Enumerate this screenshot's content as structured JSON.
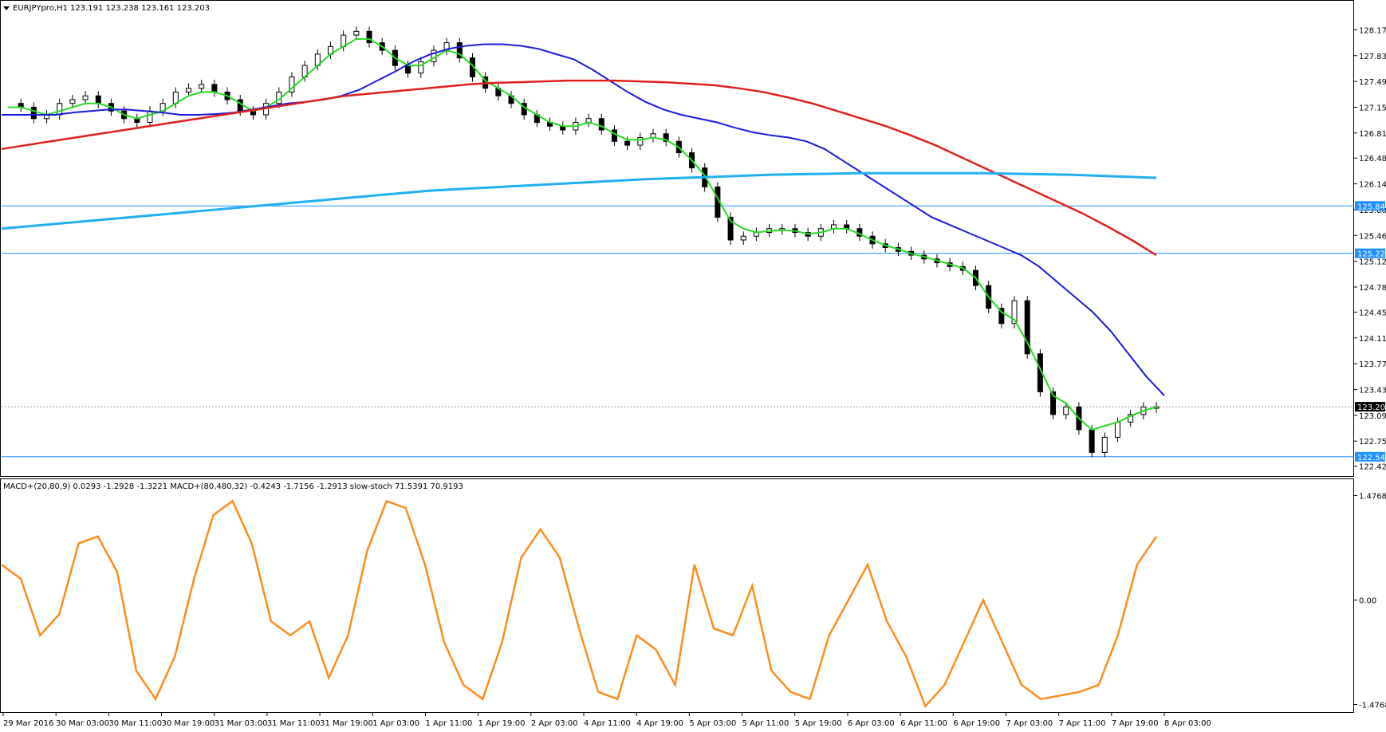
{
  "chart_data": [
    {
      "type": "candlestick",
      "symbol_label": "EURJPYpro,H1",
      "ohlc_label": "123.191 123.238 123.161 123.203",
      "ylim": [
        122.3,
        128.5
      ],
      "y_ticks": [
        "128.170",
        "127.830",
        "127.490",
        "127.150",
        "126.810",
        "126.480",
        "126.140",
        "125.800",
        "125.460",
        "125.120",
        "124.780",
        "124.450",
        "124.110",
        "123.770",
        "123.430",
        "123.090",
        "122.750",
        "122.420"
      ],
      "y_tick_values": [
        128.17,
        127.83,
        127.49,
        127.15,
        126.81,
        126.48,
        126.14,
        125.8,
        125.46,
        125.12,
        124.78,
        124.45,
        124.11,
        123.77,
        123.43,
        123.09,
        122.75,
        122.42
      ],
      "price_tags": [
        {
          "text": "125.849",
          "value": 125.849,
          "color": "#1e90ff"
        },
        {
          "text": "125.225",
          "value": 125.225,
          "color": "#1e90ff"
        },
        {
          "text": "123.203",
          "value": 123.203,
          "color": "#000000"
        },
        {
          "text": "122.544",
          "value": 122.544,
          "color": "#1e90ff"
        }
      ],
      "series": [
        {
          "name": "close",
          "values": [
            127.2,
            127.15,
            127.0,
            127.05,
            127.2,
            127.25,
            127.3,
            127.2,
            127.1,
            127.0,
            126.95,
            127.1,
            127.2,
            127.35,
            127.4,
            127.45,
            127.35,
            127.25,
            127.1,
            127.05,
            127.2,
            127.35,
            127.55,
            127.7,
            127.85,
            127.95,
            128.1,
            128.15,
            128.0,
            127.9,
            127.7,
            127.6,
            127.75,
            127.9,
            128.0,
            127.8,
            127.55,
            127.4,
            127.3,
            127.2,
            127.05,
            126.95,
            126.9,
            126.85,
            126.95,
            127.0,
            126.85,
            126.7,
            126.65,
            126.75,
            126.8,
            126.7,
            126.55,
            126.35,
            126.1,
            125.7,
            125.4,
            125.45,
            125.5,
            125.55,
            125.55,
            125.5,
            125.45,
            125.55,
            125.6,
            125.55,
            125.45,
            125.35,
            125.3,
            125.25,
            125.2,
            125.15,
            125.1,
            125.05,
            125.0,
            124.8,
            124.5,
            124.3,
            124.6,
            123.9,
            123.4,
            123.1,
            123.2,
            122.9,
            122.6,
            122.8,
            123.0,
            123.1,
            123.2,
            123.203
          ]
        },
        {
          "name": "ma_green",
          "values": [
            127.15,
            127.15,
            127.1,
            127.05,
            127.1,
            127.15,
            127.2,
            127.2,
            127.15,
            127.05,
            127.0,
            127.05,
            127.1,
            127.2,
            127.3,
            127.35,
            127.35,
            127.3,
            127.2,
            127.1,
            127.15,
            127.25,
            127.4,
            127.55,
            127.7,
            127.85,
            127.95,
            128.05,
            128.05,
            127.95,
            127.8,
            127.7,
            127.7,
            127.8,
            127.9,
            127.85,
            127.7,
            127.5,
            127.4,
            127.3,
            127.15,
            127.05,
            126.95,
            126.9,
            126.9,
            126.95,
            126.9,
            126.8,
            126.72,
            126.72,
            126.75,
            126.72,
            126.62,
            126.45,
            126.25,
            125.95,
            125.65,
            125.55,
            125.5,
            125.52,
            125.53,
            125.52,
            125.48,
            125.5,
            125.55,
            125.55,
            125.48,
            125.4,
            125.33,
            125.28,
            125.22,
            125.18,
            125.13,
            125.08,
            125.03,
            124.9,
            124.65,
            124.45,
            124.35,
            124.05,
            123.7,
            123.35,
            123.25,
            123.05,
            122.9,
            122.95,
            123.0,
            123.08,
            123.15,
            123.2
          ]
        },
        {
          "name": "ma_blue",
          "values": [
            127.05,
            127.05,
            127.05,
            127.05,
            127.08,
            127.1,
            127.12,
            127.12,
            127.1,
            127.08,
            127.05,
            127.05,
            127.06,
            127.08,
            127.12,
            127.16,
            127.2,
            127.22,
            127.25,
            127.3,
            127.38,
            127.5,
            127.62,
            127.75,
            127.85,
            127.92,
            127.96,
            127.98,
            127.98,
            127.96,
            127.92,
            127.85,
            127.78,
            127.65,
            127.5,
            127.35,
            127.22,
            127.12,
            127.05,
            127.0,
            126.95,
            126.88,
            126.82,
            126.78,
            126.75,
            126.7,
            126.6,
            126.45,
            126.3,
            126.15,
            126.0,
            125.85,
            125.7,
            125.6,
            125.5,
            125.4,
            125.3,
            125.2,
            125.05,
            124.85,
            124.65,
            124.45,
            124.2,
            123.9,
            123.6,
            123.35
          ]
        },
        {
          "name": "ma_red",
          "values": [
            126.6,
            126.65,
            126.7,
            126.75,
            126.8,
            126.85,
            126.9,
            126.95,
            127.0,
            127.05,
            127.1,
            127.15,
            127.2,
            127.25,
            127.3,
            127.33,
            127.36,
            127.39,
            127.42,
            127.45,
            127.47,
            127.48,
            127.49,
            127.5,
            127.5,
            127.5,
            127.49,
            127.48,
            127.46,
            127.44,
            127.4,
            127.35,
            127.28,
            127.2,
            127.1,
            127.0,
            126.9,
            126.78,
            126.65,
            126.5,
            126.35,
            126.2,
            126.05,
            125.9,
            125.75,
            125.58,
            125.4,
            125.2
          ]
        },
        {
          "name": "ma_cyan",
          "values": [
            125.55,
            125.6,
            125.65,
            125.7,
            125.75,
            125.8,
            125.85,
            125.9,
            125.95,
            126.0,
            126.05,
            126.08,
            126.11,
            126.14,
            126.17,
            126.2,
            126.22,
            126.24,
            126.26,
            126.27,
            126.28,
            126.28,
            126.28,
            126.28,
            126.27,
            126.26,
            126.24,
            126.22
          ]
        }
      ],
      "x_ticks": [
        "29 Mar 2016",
        "30 Mar 03:00",
        "30 Mar 11:00",
        "30 Mar 19:00",
        "31 Mar 03:00",
        "31 Mar 11:00",
        "31 Mar 19:00",
        "1 Apr 03:00",
        "1 Apr 11:00",
        "1 Apr 19:00",
        "2 Apr 03:00",
        "4 Apr 11:00",
        "4 Apr 19:00",
        "5 Apr 03:00",
        "5 Apr 11:00",
        "5 Apr 19:00",
        "6 Apr 03:00",
        "6 Apr 11:00",
        "6 Apr 19:00",
        "7 Apr 03:00",
        "7 Apr 11:00",
        "7 Apr 19:00",
        "8 Apr 03:00"
      ]
    },
    {
      "type": "line",
      "label": "MACD+(20,80,9) 0.0293 -1.2928 -1.3221  MACD+(80,480,32) -0.4243 -1.7156 -1.2913  slow-stoch 71.5391 70.9193",
      "ylim": [
        -1.55,
        1.55
      ],
      "y_ticks": [
        "1.4768",
        "0.00",
        "-1.4768"
      ],
      "y_tick_values": [
        1.4768,
        0,
        -1.4768
      ],
      "series": [
        {
          "name": "stoch",
          "values": [
            0.5,
            0.3,
            -0.5,
            -0.2,
            0.8,
            0.9,
            0.4,
            -1.0,
            -1.4,
            -0.8,
            0.3,
            1.2,
            1.4,
            0.8,
            -0.3,
            -0.5,
            -0.3,
            -1.1,
            -0.5,
            0.7,
            1.4,
            1.3,
            0.5,
            -0.6,
            -1.2,
            -1.4,
            -0.6,
            0.6,
            1.0,
            0.6,
            -0.4,
            -1.3,
            -1.4,
            -0.5,
            -0.7,
            -1.2,
            0.5,
            -0.4,
            -0.5,
            0.2,
            -1.0,
            -1.3,
            -1.4,
            -0.5,
            0.0,
            0.5,
            -0.3,
            -0.8,
            -1.5,
            -1.2,
            -0.6,
            0.0,
            -0.6,
            -1.2,
            -1.4,
            -1.35,
            -1.3,
            -1.2,
            -0.5,
            0.5,
            0.9
          ]
        }
      ]
    }
  ],
  "ui": {
    "menu_arrow": "triangle-down-icon"
  }
}
